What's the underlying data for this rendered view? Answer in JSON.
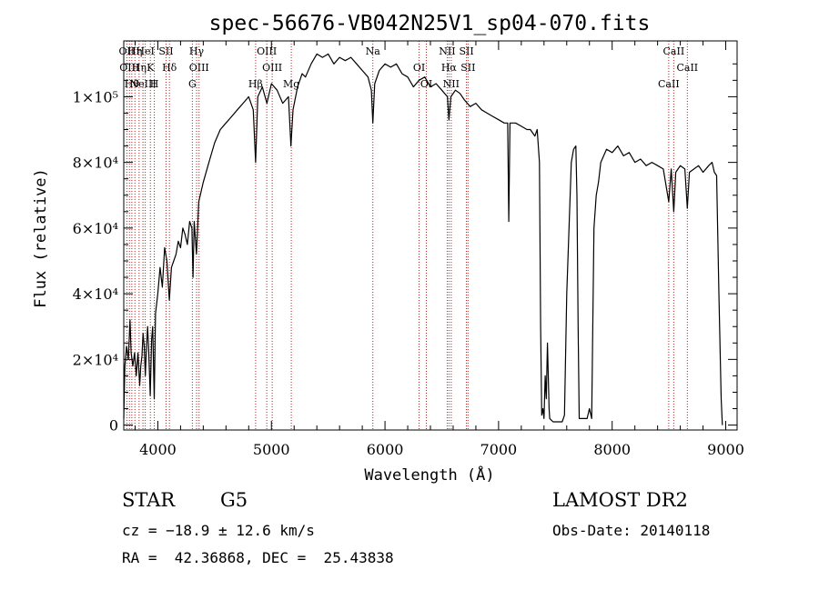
{
  "chart_data": {
    "type": "line",
    "title": "spec-56676-VB042N25V1_sp04-070.fits",
    "xlabel": "Wavelength (Å)",
    "ylabel": "Flux (relative)",
    "xlim": [
      3700,
      9100
    ],
    "ylim": [
      -1500,
      117000
    ],
    "x_ticks": [
      4000,
      5000,
      6000,
      7000,
      8000,
      9000
    ],
    "y_ticks": [
      {
        "value": 0,
        "label": "0"
      },
      {
        "value": 20000,
        "label": "2×10⁴"
      },
      {
        "value": 40000,
        "label": "4×10⁴"
      },
      {
        "value": 60000,
        "label": "6×10⁴"
      },
      {
        "value": 80000,
        "label": "8×10⁴"
      },
      {
        "value": 100000,
        "label": "1×10⁵"
      }
    ],
    "line_color": "#000000",
    "marker_color": "#b22222",
    "series": [
      {
        "points": [
          [
            3700,
            2000
          ],
          [
            3710,
            18000
          ],
          [
            3725,
            24000
          ],
          [
            3740,
            20000
          ],
          [
            3755,
            32000
          ],
          [
            3765,
            22000
          ],
          [
            3780,
            18000
          ],
          [
            3795,
            22000
          ],
          [
            3810,
            15000
          ],
          [
            3825,
            22000
          ],
          [
            3840,
            12000
          ],
          [
            3850,
            18000
          ],
          [
            3860,
            21000
          ],
          [
            3870,
            28000
          ],
          [
            3880,
            24000
          ],
          [
            3890,
            15000
          ],
          [
            3900,
            24000
          ],
          [
            3910,
            30000
          ],
          [
            3920,
            22000
          ],
          [
            3933,
            9000
          ],
          [
            3945,
            26000
          ],
          [
            3955,
            30000
          ],
          [
            3968,
            8000
          ],
          [
            3980,
            34000
          ],
          [
            4000,
            40000
          ],
          [
            4020,
            48000
          ],
          [
            4040,
            42000
          ],
          [
            4060,
            54000
          ],
          [
            4080,
            50000
          ],
          [
            4101,
            38000
          ],
          [
            4120,
            48000
          ],
          [
            4140,
            50000
          ],
          [
            4160,
            52000
          ],
          [
            4180,
            56000
          ],
          [
            4200,
            54000
          ],
          [
            4220,
            60000
          ],
          [
            4240,
            58000
          ],
          [
            4260,
            55000
          ],
          [
            4280,
            62000
          ],
          [
            4300,
            60000
          ],
          [
            4310,
            45000
          ],
          [
            4320,
            62000
          ],
          [
            4340,
            52000
          ],
          [
            4360,
            68000
          ],
          [
            4400,
            74000
          ],
          [
            4450,
            80000
          ],
          [
            4500,
            86000
          ],
          [
            4550,
            90000
          ],
          [
            4600,
            92000
          ],
          [
            4650,
            94000
          ],
          [
            4700,
            96000
          ],
          [
            4750,
            98000
          ],
          [
            4800,
            100000
          ],
          [
            4840,
            96000
          ],
          [
            4861,
            80000
          ],
          [
            4880,
            100000
          ],
          [
            4920,
            103000
          ],
          [
            4960,
            98000
          ],
          [
            5000,
            104000
          ],
          [
            5050,
            102000
          ],
          [
            5100,
            98000
          ],
          [
            5150,
            100000
          ],
          [
            5172,
            85000
          ],
          [
            5190,
            96000
          ],
          [
            5230,
            103000
          ],
          [
            5270,
            107000
          ],
          [
            5300,
            106000
          ],
          [
            5350,
            110000
          ],
          [
            5400,
            113000
          ],
          [
            5450,
            112000
          ],
          [
            5500,
            113000
          ],
          [
            5550,
            110000
          ],
          [
            5600,
            112000
          ],
          [
            5650,
            111000
          ],
          [
            5700,
            112000
          ],
          [
            5750,
            110000
          ],
          [
            5800,
            108000
          ],
          [
            5850,
            106000
          ],
          [
            5880,
            102000
          ],
          [
            5893,
            92000
          ],
          [
            5910,
            104000
          ],
          [
            5950,
            108000
          ],
          [
            6000,
            110000
          ],
          [
            6050,
            109000
          ],
          [
            6100,
            110000
          ],
          [
            6150,
            107000
          ],
          [
            6200,
            106000
          ],
          [
            6250,
            103000
          ],
          [
            6300,
            105000
          ],
          [
            6350,
            106000
          ],
          [
            6400,
            103000
          ],
          [
            6450,
            104000
          ],
          [
            6500,
            102000
          ],
          [
            6550,
            100000
          ],
          [
            6563,
            93000
          ],
          [
            6580,
            100000
          ],
          [
            6620,
            102000
          ],
          [
            6660,
            101000
          ],
          [
            6700,
            99000
          ],
          [
            6750,
            97000
          ],
          [
            6800,
            98000
          ],
          [
            6850,
            96000
          ],
          [
            6900,
            95000
          ],
          [
            6950,
            94000
          ],
          [
            7000,
            93000
          ],
          [
            7050,
            92000
          ],
          [
            7080,
            92000
          ],
          [
            7090,
            62000
          ],
          [
            7100,
            92000
          ],
          [
            7150,
            92000
          ],
          [
            7200,
            91000
          ],
          [
            7250,
            90000
          ],
          [
            7280,
            90000
          ],
          [
            7300,
            89000
          ],
          [
            7320,
            88000
          ],
          [
            7340,
            90000
          ],
          [
            7360,
            80000
          ],
          [
            7370,
            30000
          ],
          [
            7380,
            3000
          ],
          [
            7390,
            5000
          ],
          [
            7400,
            2000
          ],
          [
            7410,
            15000
          ],
          [
            7420,
            8000
          ],
          [
            7430,
            25000
          ],
          [
            7445,
            5000
          ],
          [
            7450,
            2000
          ],
          [
            7480,
            1000
          ],
          [
            7520,
            1000
          ],
          [
            7560,
            1000
          ],
          [
            7580,
            3000
          ],
          [
            7600,
            40000
          ],
          [
            7620,
            60000
          ],
          [
            7640,
            80000
          ],
          [
            7660,
            84000
          ],
          [
            7680,
            85000
          ],
          [
            7690,
            70000
          ],
          [
            7700,
            30000
          ],
          [
            7710,
            2000
          ],
          [
            7740,
            2000
          ],
          [
            7780,
            2000
          ],
          [
            7800,
            5000
          ],
          [
            7820,
            2000
          ],
          [
            7840,
            60000
          ],
          [
            7860,
            70000
          ],
          [
            7880,
            74000
          ],
          [
            7900,
            80000
          ],
          [
            7950,
            84000
          ],
          [
            8000,
            83000
          ],
          [
            8050,
            85000
          ],
          [
            8100,
            82000
          ],
          [
            8150,
            83000
          ],
          [
            8200,
            80000
          ],
          [
            8250,
            81000
          ],
          [
            8300,
            79000
          ],
          [
            8350,
            80000
          ],
          [
            8400,
            79000
          ],
          [
            8450,
            78000
          ],
          [
            8498,
            68000
          ],
          [
            8520,
            78000
          ],
          [
            8542,
            65000
          ],
          [
            8560,
            77000
          ],
          [
            8600,
            79000
          ],
          [
            8640,
            78000
          ],
          [
            8662,
            66000
          ],
          [
            8680,
            77000
          ],
          [
            8720,
            78000
          ],
          [
            8760,
            79000
          ],
          [
            8800,
            77000
          ],
          [
            8850,
            79000
          ],
          [
            8880,
            80000
          ],
          [
            8900,
            77000
          ],
          [
            8920,
            76000
          ],
          [
            8940,
            40000
          ],
          [
            8960,
            8000
          ],
          [
            8970,
            0
          ]
        ]
      }
    ],
    "line_markers": [
      {
        "wavelength": 3727,
        "label": "OII"
      },
      {
        "wavelength": 3750,
        "label": "OIII"
      },
      {
        "wavelength": 3771,
        "label": "Hθ"
      },
      {
        "wavelength": 3798,
        "label": "Hη"
      },
      {
        "wavelength": 3835,
        "label": "Hη"
      },
      {
        "wavelength": 3869,
        "label": "NeIII"
      },
      {
        "wavelength": 3889,
        "label": "HeI"
      },
      {
        "wavelength": 3934,
        "label": "K"
      },
      {
        "wavelength": 3969,
        "label": "H"
      },
      {
        "wavelength": 4072,
        "label": "SII"
      },
      {
        "wavelength": 4102,
        "label": "Hδ"
      },
      {
        "wavelength": 4304,
        "label": "G"
      },
      {
        "wavelength": 4341,
        "label": "Hγ"
      },
      {
        "wavelength": 4363,
        "label": "OIII"
      },
      {
        "wavelength": 4861,
        "label": "Hβ"
      },
      {
        "wavelength": 4959,
        "label": "OIII"
      },
      {
        "wavelength": 5007,
        "label": "OIII"
      },
      {
        "wavelength": 5175,
        "label": "Mg"
      },
      {
        "wavelength": 5893,
        "label": "Na"
      },
      {
        "wavelength": 6300,
        "label": "OI"
      },
      {
        "wavelength": 6364,
        "label": "OI"
      },
      {
        "wavelength": 6548,
        "label": "NII"
      },
      {
        "wavelength": 6563,
        "label": "Hα"
      },
      {
        "wavelength": 6583,
        "label": "NII"
      },
      {
        "wavelength": 6717,
        "label": "SII"
      },
      {
        "wavelength": 6731,
        "label": "SII"
      },
      {
        "wavelength": 8498,
        "label": "CaII"
      },
      {
        "wavelength": 8542,
        "label": "CaII"
      },
      {
        "wavelength": 8662,
        "label": "CaII"
      }
    ]
  },
  "info": {
    "object_class": "STAR",
    "subclass": "G5",
    "survey": "LAMOST DR2",
    "redshift": "cz = −18.9 ± 12.6 km/s",
    "obs_date": "Obs-Date: 20140118",
    "coords": "RA =  42.36868, DEC =  25.43838"
  }
}
